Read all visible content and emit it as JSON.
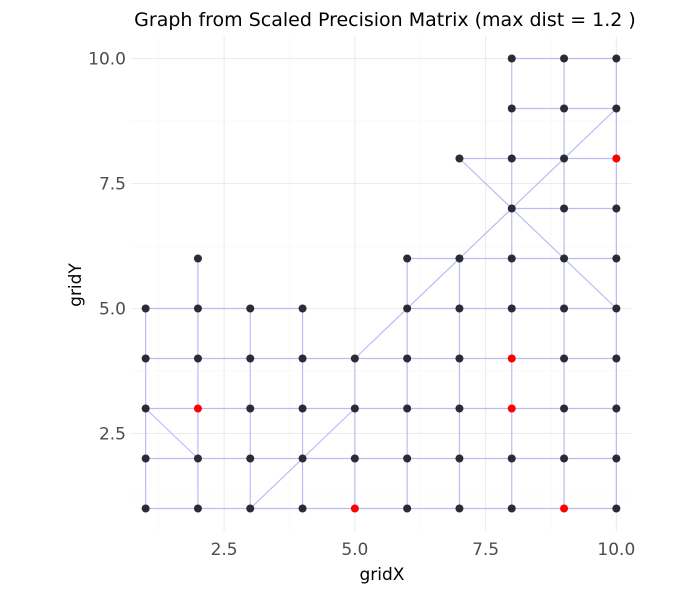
{
  "chart_data": {
    "type": "scatter",
    "title": "Graph from Scaled Precision Matrix (max dist = 1.2 )",
    "xlabel": "gridX",
    "ylabel": "gridY",
    "xlim": [
      0.72,
      10.28
    ],
    "ylim": [
      0.55,
      10.45
    ],
    "x_ticks": [
      2.5,
      5.0,
      7.5,
      10.0
    ],
    "x_tick_labels": [
      "2.5",
      "5.0",
      "7.5",
      "10.0"
    ],
    "y_ticks": [
      2.5,
      5.0,
      7.5,
      10.0
    ],
    "y_tick_labels": [
      "2.5",
      "5.0",
      "7.5",
      "10.0"
    ],
    "grid": true,
    "max_edge_distance": 1.2,
    "colors": {
      "point": "#2b2b35",
      "highlight": "#ff0000",
      "edge": "#b8b8f5",
      "grid": "#ebebeb"
    },
    "points": [
      [
        8,
        10
      ],
      [
        9,
        10
      ],
      [
        10,
        10
      ],
      [
        8,
        9
      ],
      [
        9,
        9
      ],
      [
        10,
        9
      ],
      [
        7,
        8
      ],
      [
        8,
        8
      ],
      [
        9,
        8
      ],
      [
        8,
        7
      ],
      [
        9,
        7
      ],
      [
        10,
        7
      ],
      [
        2,
        6
      ],
      [
        6,
        6
      ],
      [
        7,
        6
      ],
      [
        8,
        6
      ],
      [
        9,
        6
      ],
      [
        10,
        6
      ],
      [
        1,
        5
      ],
      [
        2,
        5
      ],
      [
        3,
        5
      ],
      [
        4,
        5
      ],
      [
        6,
        5
      ],
      [
        7,
        5
      ],
      [
        8,
        5
      ],
      [
        9,
        5
      ],
      [
        10,
        5
      ],
      [
        1,
        4
      ],
      [
        2,
        4
      ],
      [
        3,
        4
      ],
      [
        4,
        4
      ],
      [
        5,
        4
      ],
      [
        6,
        4
      ],
      [
        7,
        4
      ],
      [
        9,
        4
      ],
      [
        10,
        4
      ],
      [
        1,
        3
      ],
      [
        3,
        3
      ],
      [
        4,
        3
      ],
      [
        5,
        3
      ],
      [
        6,
        3
      ],
      [
        7,
        3
      ],
      [
        9,
        3
      ],
      [
        10,
        3
      ],
      [
        1,
        2
      ],
      [
        2,
        2
      ],
      [
        3,
        2
      ],
      [
        4,
        2
      ],
      [
        5,
        2
      ],
      [
        6,
        2
      ],
      [
        7,
        2
      ],
      [
        8,
        2
      ],
      [
        9,
        2
      ],
      [
        10,
        2
      ],
      [
        1,
        1
      ],
      [
        2,
        1
      ],
      [
        3,
        1
      ],
      [
        4,
        1
      ],
      [
        6,
        1
      ],
      [
        7,
        1
      ],
      [
        8,
        1
      ],
      [
        10,
        1
      ]
    ],
    "highlighted_points": [
      [
        10,
        8
      ],
      [
        8,
        4
      ],
      [
        2,
        3
      ],
      [
        8,
        3
      ],
      [
        5,
        1
      ],
      [
        9,
        1
      ]
    ],
    "edges": [
      [
        [
          7,
          8
        ],
        [
          10,
          5
        ]
      ],
      [
        [
          3,
          1
        ],
        [
          5,
          3
        ]
      ],
      [
        [
          5,
          4
        ],
        [
          10,
          9
        ]
      ],
      [
        [
          1,
          3
        ],
        [
          2,
          2
        ]
      ]
    ]
  }
}
